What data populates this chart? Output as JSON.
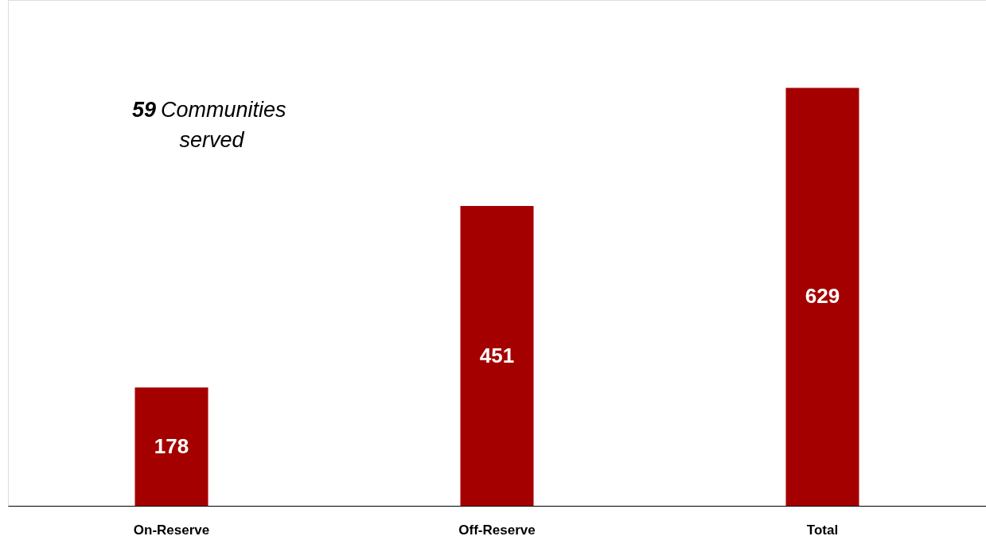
{
  "chart_data": {
    "type": "bar",
    "categories": [
      "On-Reserve",
      "Off-Reserve",
      "Total"
    ],
    "values": [
      178,
      451,
      629
    ],
    "color": "#a50000",
    "data_labels": true,
    "grid": false,
    "tick_labels": "x",
    "annotations": [
      "59 Communities served"
    ]
  }
}
